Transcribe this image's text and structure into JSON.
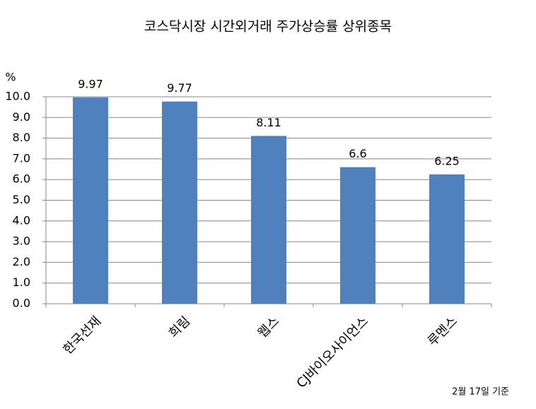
{
  "chart_data": {
    "type": "bar",
    "title": "코스닥시장 시간외거래  주가상승률 상위종목",
    "y_unit": "%",
    "note": "2월 17일 기준",
    "categories": [
      "한국선재",
      "희림",
      "웹스",
      "CJ바이오사이언스",
      "루멘스"
    ],
    "values": [
      9.97,
      9.77,
      8.11,
      6.6,
      6.25
    ],
    "color": "#4f81bd",
    "ylim": [
      0,
      10
    ],
    "yticks": [
      {
        "value": 0,
        "label": "0.0"
      },
      {
        "value": 1,
        "label": "1.0"
      },
      {
        "value": 2,
        "label": "2.0"
      },
      {
        "value": 3,
        "label": "3.0"
      },
      {
        "value": 4,
        "label": "4.0"
      },
      {
        "value": 5,
        "label": "5.0"
      },
      {
        "value": 6,
        "label": "6.0"
      },
      {
        "value": 7,
        "label": "7.0"
      },
      {
        "value": 8,
        "label": "8.0"
      },
      {
        "value": 9,
        "label": "9.0"
      },
      {
        "value": 10,
        "label": "10.0"
      }
    ],
    "grid": true
  }
}
